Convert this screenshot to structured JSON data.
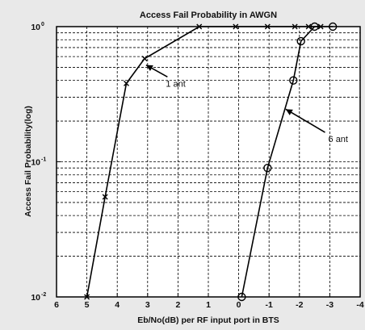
{
  "chart_data": {
    "type": "line",
    "title": "Access Fail Probability in AWGN",
    "xlabel": "Eb/No(dB) per RF input port in BTS",
    "ylabel": "Access Fail Probability(log)",
    "xlim": [
      6,
      -4
    ],
    "ylim": [
      0.01,
      1
    ],
    "y_scale": "log",
    "x_reversed": true,
    "grid": true,
    "x_ticks": [
      {
        "value": 6,
        "label": "6"
      },
      {
        "value": 5,
        "label": "5"
      },
      {
        "value": 4,
        "label": "4"
      },
      {
        "value": 3,
        "label": "3"
      },
      {
        "value": 2,
        "label": "2"
      },
      {
        "value": 1,
        "label": "1"
      },
      {
        "value": 0,
        "label": "0"
      },
      {
        "value": -1,
        "label": "-1"
      },
      {
        "value": -2,
        "label": "-2"
      },
      {
        "value": -3,
        "label": "-3"
      },
      {
        "value": -4,
        "label": "-4"
      }
    ],
    "y_ticks": [
      {
        "value": 1,
        "base": "10",
        "exp": "0"
      },
      {
        "value": 0.1,
        "base": "10",
        "exp": "-1"
      },
      {
        "value": 0.01,
        "base": "10",
        "exp": "-2"
      }
    ],
    "series": [
      {
        "name": "1 ant",
        "marker": "x",
        "color": "#000000",
        "x": [
          5.0,
          4.4,
          3.7,
          3.1,
          1.3,
          0.1,
          -0.95,
          -1.85,
          -2.3,
          -2.7
        ],
        "y": [
          0.01,
          0.055,
          0.38,
          0.58,
          1.0,
          1.0,
          1.0,
          1.0,
          1.0,
          1.0
        ]
      },
      {
        "name": "6 ant",
        "marker": "o",
        "color": "#000000",
        "x": [
          -0.1,
          -0.95,
          -1.8,
          -2.05,
          -2.5,
          -3.1
        ],
        "y": [
          0.01,
          0.09,
          0.4,
          0.78,
          1.0,
          1.0
        ]
      }
    ],
    "annotations": [
      {
        "text": "1 ant",
        "x": 2.4,
        "y": 0.36,
        "arrow_to_x": 3.05,
        "arrow_to_y": 0.52
      },
      {
        "text": "6 ant",
        "x": -2.95,
        "y": 0.14,
        "arrow_to_x": -1.55,
        "arrow_to_y": 0.245
      }
    ]
  }
}
